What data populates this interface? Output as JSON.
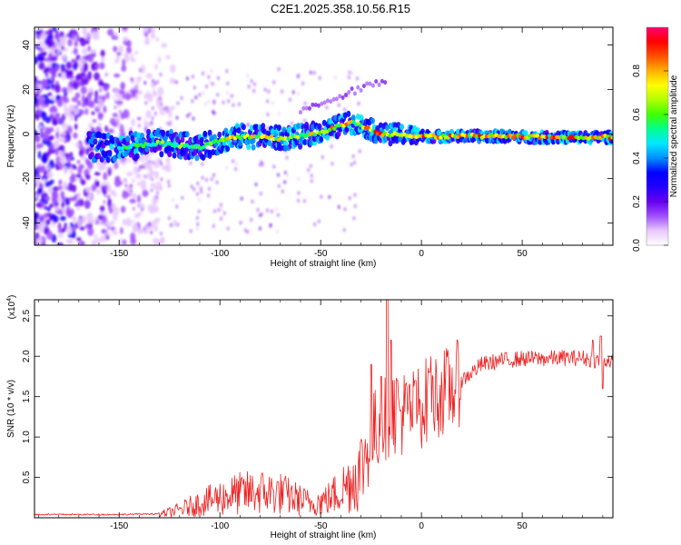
{
  "figure": {
    "title": "C2E1.2025.358.10.56.R15"
  },
  "chart_data": [
    {
      "type": "heatmap",
      "name": "spectrogram",
      "xlabel": "Height of straight line (km)",
      "ylabel": "Frequency (Hz)",
      "xlim": [
        -192,
        95
      ],
      "ylim": [
        -50,
        48
      ],
      "xticks": [
        -150,
        -100,
        -50,
        0,
        50
      ],
      "yticks": [
        -40,
        -20,
        0,
        20,
        40
      ],
      "ridge": {
        "x": [
          -160,
          -150,
          -140,
          -130,
          -120,
          -110,
          -100,
          -90,
          -80,
          -70,
          -60,
          -50,
          -45,
          -40,
          -35,
          -30,
          -25,
          -20,
          -10,
          0,
          10,
          20,
          40,
          60,
          80,
          95
        ],
        "y": [
          -6,
          -6,
          -5,
          -4,
          -5,
          -6,
          -3,
          -1,
          -1,
          -2,
          -1,
          1,
          2,
          4,
          5,
          4,
          2,
          0,
          0,
          -1,
          -1,
          -1,
          -1,
          -1.5,
          -1.5,
          -1.5
        ]
      },
      "colorbar": {
        "label": "Normalized spectral amplitude",
        "range": [
          0,
          1
        ],
        "ticks": [
          "0.0",
          "0.2",
          "0.4",
          "0.6",
          "0.8"
        ],
        "colors": [
          "#ffffff",
          "#e8c8ff",
          "#a050ff",
          "#6600ee",
          "#2200ff",
          "#0000ff",
          "#0090ff",
          "#00e8ff",
          "#00ff90",
          "#40ff00",
          "#b0ff00",
          "#ffff00",
          "#ffb000",
          "#ff5000",
          "#ff0000",
          "#ff0070"
        ]
      }
    },
    {
      "type": "line",
      "name": "snr",
      "xlabel": "Height of straight line (km)",
      "ylabel": "SNR (10 * v/v)",
      "scale_label": "(x10",
      "scale_exp": "4",
      "scale_close": ")",
      "xlim": [
        -192,
        95
      ],
      "ylim": [
        0,
        2.7
      ],
      "xticks": [
        -150,
        -100,
        -50,
        0,
        50
      ],
      "yticks": [
        "0.5",
        "1.0",
        "1.5",
        "2.0",
        "2.5"
      ],
      "color": "#ee2222",
      "envelope": {
        "x": [
          -192,
          -150,
          -130,
          -120,
          -110,
          -100,
          -90,
          -80,
          -70,
          -60,
          -55,
          -50,
          -45,
          -40,
          -35,
          -30,
          -27,
          -25,
          -22,
          -20,
          -18,
          -16,
          -15,
          -10,
          -5,
          0,
          5,
          10,
          15,
          20,
          25,
          30,
          40,
          50,
          60,
          70,
          80,
          85,
          95
        ],
        "y": [
          0.03,
          0.03,
          0.04,
          0.1,
          0.18,
          0.25,
          0.3,
          0.32,
          0.3,
          0.22,
          0.18,
          0.2,
          0.25,
          0.35,
          0.45,
          0.6,
          0.85,
          1.0,
          1.1,
          1.2,
          1.25,
          1.3,
          1.35,
          1.3,
          1.3,
          1.4,
          1.5,
          1.55,
          1.6,
          1.7,
          1.8,
          1.9,
          1.95,
          1.97,
          1.97,
          1.98,
          1.98,
          1.95,
          1.95
        ]
      },
      "spikes": [
        {
          "x": -17,
          "y": 2.7
        },
        {
          "x": -15,
          "y": 2.2
        },
        {
          "x": -25,
          "y": 1.9
        },
        {
          "x": -20,
          "y": 1.75
        },
        {
          "x": -12,
          "y": 1.7
        },
        {
          "x": -3,
          "y": 1.7
        },
        {
          "x": 4,
          "y": 1.8
        },
        {
          "x": 85,
          "y": 2.2
        },
        {
          "x": 89,
          "y": 2.25
        },
        {
          "x": 90,
          "y": 1.6
        }
      ]
    }
  ]
}
